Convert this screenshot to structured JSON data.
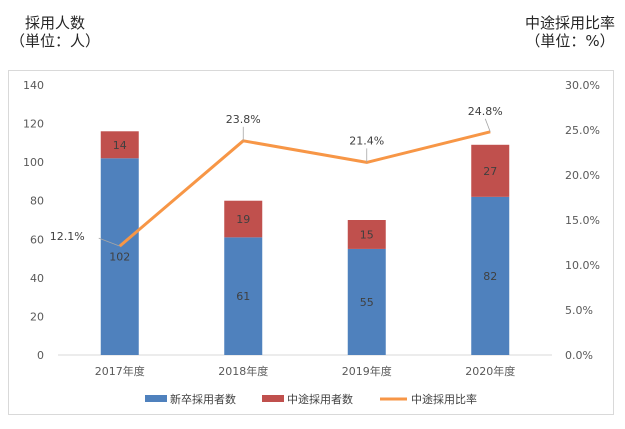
{
  "left_axis_title": {
    "line1": "採用人数",
    "line2": "（単位：人）"
  },
  "right_axis_title": {
    "line1": "中途採用比率",
    "line2": "（単位：%）"
  },
  "colors": {
    "new_grad": "#4f81bd",
    "mid_career": "#c0504d",
    "ratio": "#f79646"
  },
  "chart_data": {
    "type": "bar",
    "stacked": true,
    "categories": [
      "2017年度",
      "2018年度",
      "2019年度",
      "2020年度"
    ],
    "series": [
      {
        "name": "新卒採用者数",
        "kind": "bar",
        "axis": "left",
        "values": [
          102,
          61,
          55,
          82
        ]
      },
      {
        "name": "中途採用者数",
        "kind": "bar",
        "axis": "left",
        "values": [
          14,
          19,
          15,
          27
        ]
      },
      {
        "name": "中途採用比率",
        "kind": "line",
        "axis": "right",
        "values": [
          12.1,
          23.8,
          21.4,
          24.8
        ],
        "labels": [
          "12.1%",
          "23.8%",
          "21.4%",
          "24.8%"
        ]
      }
    ],
    "ylim_left": [
      0,
      140
    ],
    "yticks_left": [
      "0",
      "20",
      "40",
      "60",
      "80",
      "100",
      "120",
      "140"
    ],
    "ylim_right": [
      0,
      30
    ],
    "yticks_right": [
      "0.0%",
      "5.0%",
      "10.0%",
      "15.0%",
      "20.0%",
      "25.0%",
      "30.0%"
    ],
    "grid": false,
    "legend_position": "bottom"
  }
}
